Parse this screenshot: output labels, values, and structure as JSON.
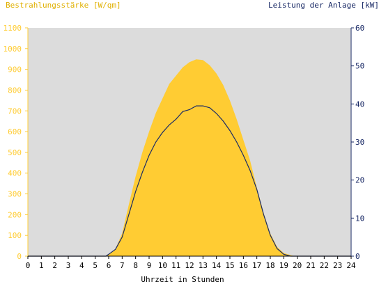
{
  "chart_data": {
    "type": "area",
    "left_title": "Bestrahlungsstärke [W/qm]",
    "right_title": "Leistung der Anlage [kW]",
    "xlabel": "Uhrzeit in Stunden",
    "x_ticks": [
      "0",
      "1",
      "2",
      "3",
      "4",
      "5",
      "6",
      "7",
      "8",
      "9",
      "10",
      "11",
      "12",
      "13",
      "14",
      "15",
      "16",
      "17",
      "18",
      "19",
      "20",
      "21",
      "22",
      "23",
      "24"
    ],
    "y_left_ticks": [
      "0",
      "100",
      "200",
      "300",
      "400",
      "500",
      "600",
      "700",
      "800",
      "900",
      "1000",
      "1100"
    ],
    "y_right_ticks": [
      "0",
      "10",
      "20",
      "30",
      "40",
      "50",
      "60"
    ],
    "xlim": [
      0,
      24
    ],
    "ylim_left": [
      0,
      1100
    ],
    "ylim_right": [
      0,
      60
    ],
    "colors": {
      "plot_background": "#dcdcdc",
      "irradiance_fill": "#ffcc33",
      "power_line": "#1a2a66",
      "left_axis": "#ffcc33",
      "right_axis": "#1a2a66",
      "left_title_color": "#e0b000",
      "right_title_color": "#1a2a66"
    },
    "series": [
      {
        "axis": "left",
        "style": "filled-area",
        "x": [
          0,
          5.8,
          6,
          6.5,
          7,
          7.5,
          8,
          8.5,
          9,
          9.5,
          10,
          10.5,
          11,
          11.5,
          12,
          12.5,
          13,
          13.5,
          14,
          14.5,
          15,
          15.5,
          16,
          16.5,
          17,
          17.5,
          18,
          18.5,
          19,
          19.5,
          19.8,
          24
        ],
        "values": [
          0,
          0,
          10,
          35,
          110,
          250,
          385,
          500,
          600,
          690,
          760,
          830,
          870,
          910,
          935,
          948,
          945,
          920,
          880,
          825,
          750,
          660,
          560,
          460,
          330,
          210,
          110,
          45,
          15,
          5,
          0,
          0
        ]
      },
      {
        "axis": "right",
        "style": "line",
        "x": [
          0,
          5.8,
          6,
          6.5,
          7,
          7.5,
          8,
          8.5,
          9,
          9.5,
          10,
          10.5,
          11,
          11.5,
          12,
          12.5,
          13,
          13.5,
          14,
          14.5,
          15,
          15.5,
          16,
          16.5,
          17,
          17.5,
          18,
          18.5,
          19,
          19.5,
          19.8,
          24
        ],
        "values": [
          0,
          0,
          0.5,
          1.8,
          5,
          11,
          17,
          22,
          26.5,
          30,
          32.5,
          34.5,
          36,
          38,
          38.5,
          39.5,
          39.5,
          39,
          37.5,
          35.5,
          33,
          30,
          26.5,
          22.5,
          17.5,
          11,
          5.5,
          2,
          0.5,
          0,
          0,
          0
        ]
      }
    ]
  }
}
